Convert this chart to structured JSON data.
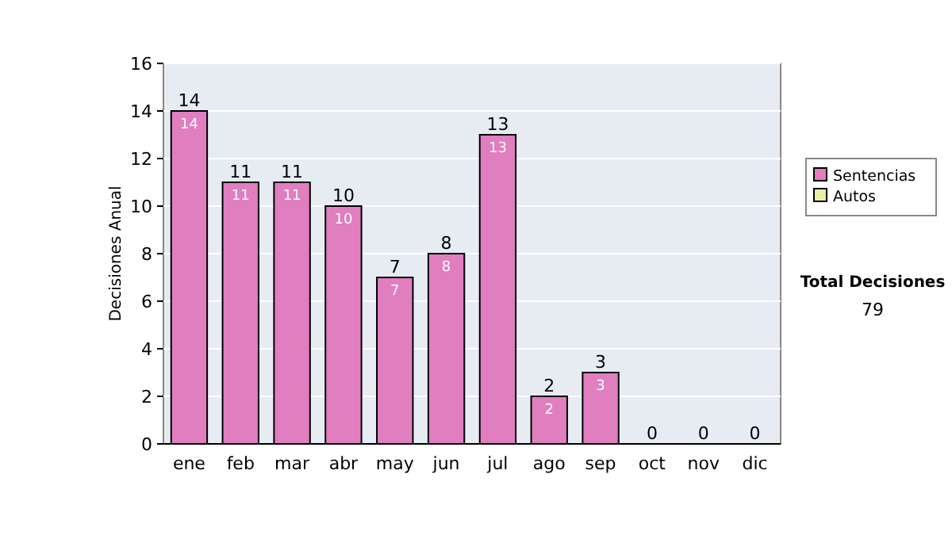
{
  "chart_data": {
    "type": "bar",
    "stacked": true,
    "ylabel": "Decisiones Anual",
    "categories": [
      "ene",
      "feb",
      "mar",
      "abr",
      "may",
      "jun",
      "jul",
      "ago",
      "sep",
      "oct",
      "nov",
      "dic"
    ],
    "series": [
      {
        "name": "Sentencias",
        "color": "#e07ec0",
        "values": [
          14,
          11,
          11,
          10,
          7,
          8,
          13,
          2,
          3,
          0,
          0,
          0
        ],
        "value_labels": [
          "14",
          "11",
          "11",
          "10",
          "7",
          "8",
          "13",
          "2",
          "3",
          null,
          null,
          null
        ]
      },
      {
        "name": "Autos",
        "color": "#e8f0a0",
        "values": [
          0,
          0,
          0,
          0,
          0,
          0,
          0,
          0,
          0,
          0,
          0,
          0
        ]
      }
    ],
    "totals": [
      "14",
      "11",
      "11",
      "10",
      "7",
      "8",
      "13",
      "2",
      "3",
      "0",
      "0",
      "0"
    ],
    "ylim": [
      0,
      16
    ],
    "yticks": [
      0,
      2,
      4,
      6,
      8,
      10,
      12,
      14,
      16
    ],
    "grid": "y",
    "legend": "right",
    "annotations": [
      "Total Decisiones",
      "79"
    ]
  }
}
